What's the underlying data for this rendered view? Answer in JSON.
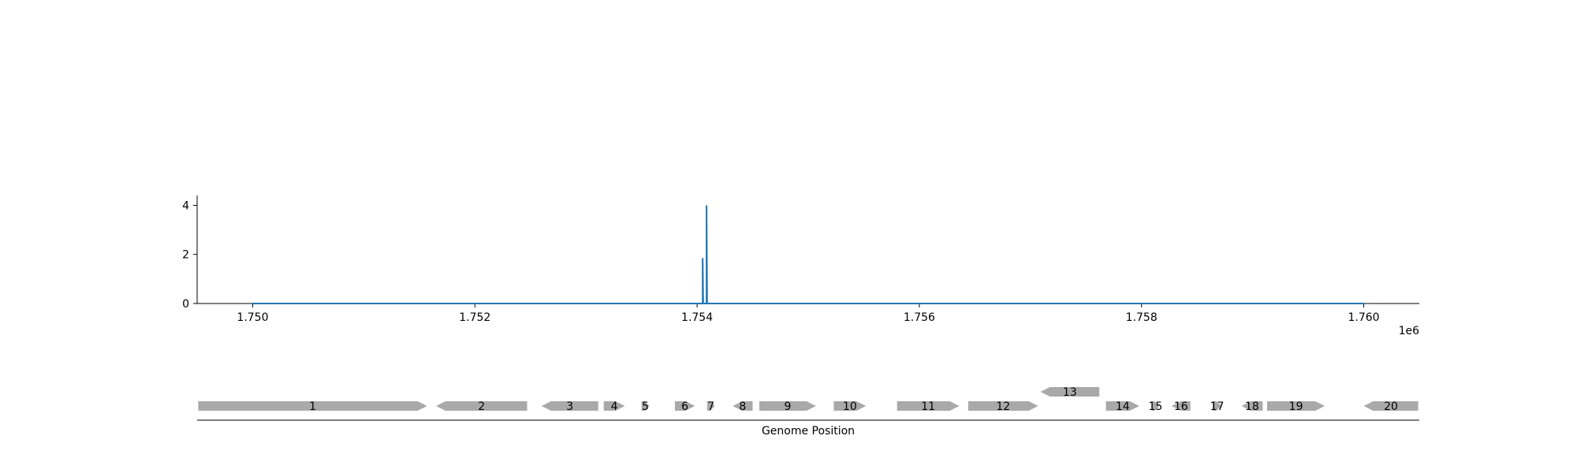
{
  "chart_data": [
    {
      "type": "line",
      "title": "",
      "xlabel": "",
      "ylabel": "",
      "x_offset_label": "1e6",
      "xlim": [
        1749500,
        1760500
      ],
      "ylim": [
        0,
        4.4
      ],
      "x_ticks": [
        {
          "value": 1750000,
          "label": "1.750"
        },
        {
          "value": 1752000,
          "label": "1.752"
        },
        {
          "value": 1754000,
          "label": "1.754"
        },
        {
          "value": 1756000,
          "label": "1.756"
        },
        {
          "value": 1758000,
          "label": "1.758"
        },
        {
          "value": 1760000,
          "label": "1.760"
        }
      ],
      "y_ticks": [
        {
          "value": 0,
          "label": "0"
        },
        {
          "value": 2,
          "label": "2"
        },
        {
          "value": 4,
          "label": "4"
        }
      ],
      "grid": false,
      "line_color": "#1f77b4",
      "series": [
        {
          "x": [
            1750000,
            1754050,
            1754050,
            1754055,
            1754085,
            1754085,
            1754090,
            1760000
          ],
          "y": [
            0,
            0,
            1.85,
            0,
            0,
            4.0,
            0,
            0
          ]
        }
      ]
    },
    {
      "type": "gene_track",
      "xlabel": "Genome Position",
      "gene_color": "#a9a9a9",
      "genes": [
        {
          "label": "1",
          "start": 1749510,
          "end": 1751570,
          "strand": "+",
          "row": 0
        },
        {
          "label": "2",
          "start": 1751650,
          "end": 1752470,
          "strand": "-",
          "row": 0
        },
        {
          "label": "3",
          "start": 1752600,
          "end": 1753110,
          "strand": "-",
          "row": 0
        },
        {
          "label": "4",
          "start": 1753160,
          "end": 1753350,
          "strand": "+",
          "row": 0
        },
        {
          "label": "5",
          "start": 1753500,
          "end": 1753570,
          "strand": "+",
          "row": 0
        },
        {
          "label": "6",
          "start": 1753800,
          "end": 1753980,
          "strand": "+",
          "row": 0
        },
        {
          "label": "7",
          "start": 1754090,
          "end": 1754160,
          "strand": "+",
          "row": 0
        },
        {
          "label": "8",
          "start": 1754320,
          "end": 1754500,
          "strand": "-",
          "row": 0
        },
        {
          "label": "9",
          "start": 1754560,
          "end": 1755070,
          "strand": "+",
          "row": 0
        },
        {
          "label": "10",
          "start": 1755230,
          "end": 1755520,
          "strand": "+",
          "row": 0
        },
        {
          "label": "11",
          "start": 1755800,
          "end": 1756360,
          "strand": "+",
          "row": 0
        },
        {
          "label": "12",
          "start": 1756440,
          "end": 1757070,
          "strand": "+",
          "row": 0
        },
        {
          "label": "13",
          "start": 1757090,
          "end": 1757620,
          "strand": "-",
          "row": 1
        },
        {
          "label": "14",
          "start": 1757680,
          "end": 1757980,
          "strand": "+",
          "row": 0
        },
        {
          "label": "15",
          "start": 1758090,
          "end": 1758160,
          "strand": "+",
          "row": 0
        },
        {
          "label": "16",
          "start": 1758270,
          "end": 1758440,
          "strand": "-",
          "row": 0
        },
        {
          "label": "17",
          "start": 1758640,
          "end": 1758720,
          "strand": "+",
          "row": 0
        },
        {
          "label": "18",
          "start": 1758900,
          "end": 1759090,
          "strand": "-",
          "row": 0
        },
        {
          "label": "19",
          "start": 1759130,
          "end": 1759650,
          "strand": "+",
          "row": 0
        },
        {
          "label": "20",
          "start": 1760000,
          "end": 1760490,
          "strand": "-",
          "row": 0
        }
      ]
    }
  ]
}
